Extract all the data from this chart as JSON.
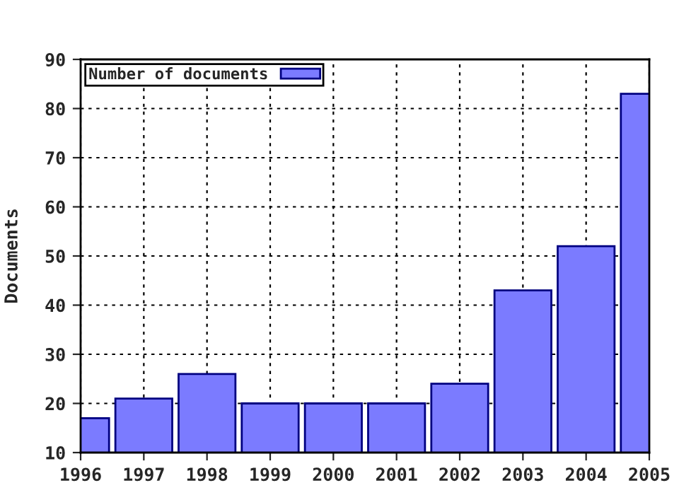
{
  "chart_data": {
    "type": "bar",
    "ylabel": "Documents",
    "x": [
      1996,
      1997,
      1998,
      1999,
      2000,
      2001,
      2002,
      2003,
      2004,
      2005
    ],
    "series": [
      {
        "name": "Number of documents",
        "color": "#7b7bff",
        "values": [
          17,
          21,
          26,
          20,
          20,
          20,
          24,
          43,
          52,
          83
        ]
      }
    ],
    "xlim": [
      1996,
      2005
    ],
    "xticks": [
      1996,
      1997,
      1998,
      1999,
      2000,
      2001,
      2002,
      2003,
      2004,
      2005
    ],
    "ylim": [
      10,
      90
    ],
    "yticks": [
      10,
      20,
      30,
      40,
      50,
      60,
      70,
      80,
      90
    ],
    "grid": true,
    "legend": "top left"
  }
}
